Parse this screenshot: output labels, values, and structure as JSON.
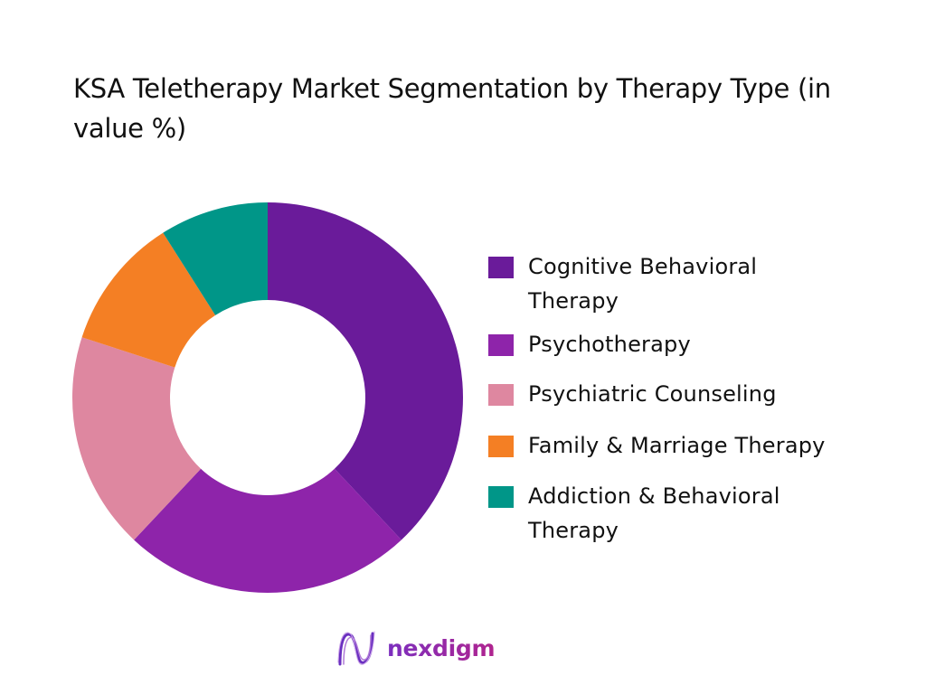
{
  "title": "KSA Teletherapy Market Segmentation by Therapy Type (in value %)",
  "chart_data": {
    "type": "pie",
    "variant": "donut",
    "title": "KSA Teletherapy Market Segmentation by Therapy Type (in value %)",
    "categories": [
      "Cognitive Behavioral Therapy",
      "Psychotherapy",
      "Psychiatric Counseling",
      "Family & Marriage Therapy",
      "Addiction & Behavioral Therapy"
    ],
    "values": [
      38,
      24,
      18,
      11,
      9
    ],
    "unit": "%",
    "colors": [
      "#6A1B9A",
      "#8E24AA",
      "#DE87A0",
      "#F47F24",
      "#009688"
    ],
    "start_angle": "12 o'clock",
    "direction": "clockwise",
    "legend_position": "right",
    "data_labels": false
  },
  "legend": [
    {
      "label": "Cognitive Behavioral Therapy",
      "color": "#6A1B9A"
    },
    {
      "label": "Psychotherapy",
      "color": "#8E24AA"
    },
    {
      "label": "Psychiatric Counseling",
      "color": "#DE87A0"
    },
    {
      "label": "Family & Marriage Therapy",
      "color": "#F47F24"
    },
    {
      "label": "Addiction & Behavioral Therapy",
      "color": "#009688"
    }
  ],
  "brand": {
    "name": "nexdigm",
    "icon": "wave-logo-icon"
  }
}
